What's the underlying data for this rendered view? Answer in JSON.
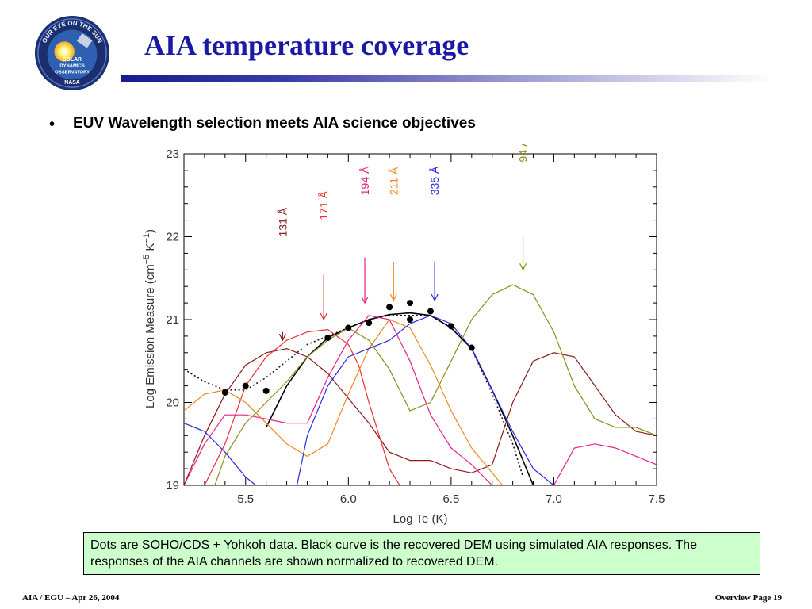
{
  "slide": {
    "title": "AIA temperature coverage",
    "bullet": "EUV Wavelength selection meets AIA science objectives",
    "caption": "Dots are SOHO/CDS + Yohkoh data.  Black curve is the recovered DEM using simulated AIA responses.  The responses of the AIA channels are shown normalized to recovered DEM.",
    "footer_left": "AIA / EGU – Apr 26, 2004",
    "footer_right": "Overview Page 19"
  },
  "logo": {
    "ring_text": "OUR EYE ON THE SUN",
    "line1": "SOLAR",
    "line2": "DYNAMICS",
    "line3": "OBSERVATORY",
    "agency": "NASA"
  },
  "chart_data": {
    "type": "line",
    "title": "",
    "xlabel": "Log Te (K)",
    "ylabel_main": "Log Emission Measure (cm",
    "ylabel_sup1": "−5",
    "ylabel_mid": " K",
    "ylabel_sup2": "−1",
    "ylabel_end": ")",
    "xlim": [
      5.2,
      7.5
    ],
    "ylim": [
      19,
      23
    ],
    "x_ticks": [
      {
        "value": 5.5,
        "label": "5.5"
      },
      {
        "value": 6.0,
        "label": "6.0"
      },
      {
        "value": 6.5,
        "label": "6.5"
      },
      {
        "value": 7.0,
        "label": "7.0"
      },
      {
        "value": 7.5,
        "label": "7.5"
      }
    ],
    "y_ticks": [
      {
        "value": 19,
        "label": "19"
      },
      {
        "value": 20,
        "label": "20"
      },
      {
        "value": 21,
        "label": "21"
      },
      {
        "value": 22,
        "label": "22"
      },
      {
        "value": 23,
        "label": "23"
      }
    ],
    "series": [
      {
        "color": "#1a1a1a",
        "style": "dotted",
        "points": [
          [
            5.2,
            20.4
          ],
          [
            5.3,
            20.25
          ],
          [
            5.4,
            20.15
          ],
          [
            5.5,
            20.15
          ],
          [
            5.6,
            20.3
          ],
          [
            5.7,
            20.5
          ],
          [
            5.8,
            20.7
          ],
          [
            5.9,
            20.8
          ],
          [
            6.0,
            20.9
          ],
          [
            6.1,
            21.0
          ],
          [
            6.2,
            21.05
          ],
          [
            6.3,
            21.05
          ],
          [
            6.4,
            21.05
          ],
          [
            6.5,
            20.9
          ],
          [
            6.6,
            20.65
          ],
          [
            6.7,
            20.1
          ],
          [
            6.8,
            19.5
          ],
          [
            6.85,
            19.1
          ]
        ]
      },
      {
        "color": "#000000",
        "style": "solid",
        "points": [
          [
            5.6,
            19.7
          ],
          [
            5.7,
            20.2
          ],
          [
            5.8,
            20.55
          ],
          [
            5.9,
            20.78
          ],
          [
            6.0,
            20.9
          ],
          [
            6.1,
            21.0
          ],
          [
            6.2,
            21.06
          ],
          [
            6.3,
            21.08
          ],
          [
            6.4,
            21.05
          ],
          [
            6.5,
            20.9
          ],
          [
            6.6,
            20.65
          ],
          [
            6.7,
            20.15
          ],
          [
            6.8,
            19.6
          ],
          [
            6.9,
            19.0
          ]
        ]
      },
      {
        "color": "#8b1a1a",
        "style": "solid",
        "points": [
          [
            5.2,
            19.0
          ],
          [
            5.3,
            19.6
          ],
          [
            5.4,
            20.1
          ],
          [
            5.5,
            20.45
          ],
          [
            5.6,
            20.6
          ],
          [
            5.7,
            20.65
          ],
          [
            5.8,
            20.55
          ],
          [
            5.9,
            20.35
          ],
          [
            6.0,
            20.05
          ],
          [
            6.1,
            19.75
          ],
          [
            6.2,
            19.4
          ],
          [
            6.3,
            19.3
          ],
          [
            6.4,
            19.3
          ],
          [
            6.5,
            19.2
          ],
          [
            6.6,
            19.15
          ],
          [
            6.7,
            19.25
          ],
          [
            6.8,
            20.0
          ],
          [
            6.9,
            20.5
          ],
          [
            7.0,
            20.6
          ],
          [
            7.1,
            20.55
          ],
          [
            7.2,
            20.2
          ],
          [
            7.3,
            19.85
          ],
          [
            7.4,
            19.65
          ],
          [
            7.5,
            19.6
          ]
        ]
      },
      {
        "color": "#e83030",
        "style": "solid",
        "points": [
          [
            5.3,
            19.0
          ],
          [
            5.4,
            19.5
          ],
          [
            5.5,
            20.2
          ],
          [
            5.6,
            20.55
          ],
          [
            5.7,
            20.75
          ],
          [
            5.8,
            20.85
          ],
          [
            5.9,
            20.88
          ],
          [
            6.0,
            20.7
          ],
          [
            6.05,
            20.45
          ],
          [
            6.1,
            20.0
          ],
          [
            6.2,
            19.2
          ],
          [
            6.25,
            19.0
          ]
        ]
      },
      {
        "color": "#e8208c",
        "style": "solid",
        "points": [
          [
            5.2,
            19.0
          ],
          [
            5.3,
            19.5
          ],
          [
            5.4,
            19.85
          ],
          [
            5.5,
            19.85
          ],
          [
            5.6,
            19.8
          ],
          [
            5.7,
            19.75
          ],
          [
            5.8,
            19.75
          ],
          [
            5.9,
            20.3
          ],
          [
            6.0,
            20.75
          ],
          [
            6.1,
            21.05
          ],
          [
            6.2,
            21.0
          ],
          [
            6.3,
            20.5
          ],
          [
            6.4,
            19.85
          ],
          [
            6.5,
            19.45
          ],
          [
            6.6,
            19.25
          ],
          [
            6.7,
            19.0
          ],
          [
            7.0,
            19.0
          ],
          [
            7.1,
            19.45
          ],
          [
            7.2,
            19.5
          ],
          [
            7.3,
            19.45
          ],
          [
            7.4,
            19.35
          ],
          [
            7.5,
            19.25
          ]
        ]
      },
      {
        "color": "#f08a20",
        "style": "solid",
        "points": [
          [
            5.2,
            19.9
          ],
          [
            5.3,
            20.1
          ],
          [
            5.4,
            20.15
          ],
          [
            5.5,
            20.0
          ],
          [
            5.6,
            19.75
          ],
          [
            5.7,
            19.5
          ],
          [
            5.8,
            19.35
          ],
          [
            5.9,
            19.5
          ],
          [
            6.0,
            20.1
          ],
          [
            6.1,
            20.65
          ],
          [
            6.2,
            21.0
          ],
          [
            6.3,
            20.9
          ],
          [
            6.4,
            20.45
          ],
          [
            6.5,
            19.9
          ],
          [
            6.6,
            19.45
          ],
          [
            6.7,
            19.15
          ],
          [
            6.75,
            19.0
          ]
        ]
      },
      {
        "color": "#2a2ae8",
        "style": "solid",
        "points": [
          [
            5.2,
            19.75
          ],
          [
            5.3,
            19.65
          ],
          [
            5.4,
            19.4
          ],
          [
            5.5,
            19.1
          ],
          [
            5.55,
            19.0
          ],
          [
            5.75,
            19.0
          ],
          [
            5.8,
            19.6
          ],
          [
            5.9,
            20.2
          ],
          [
            6.0,
            20.55
          ],
          [
            6.1,
            20.65
          ],
          [
            6.2,
            20.75
          ],
          [
            6.3,
            20.95
          ],
          [
            6.4,
            21.05
          ],
          [
            6.5,
            20.95
          ],
          [
            6.6,
            20.65
          ],
          [
            6.7,
            20.15
          ],
          [
            6.8,
            19.65
          ],
          [
            6.9,
            19.2
          ],
          [
            7.0,
            19.0
          ]
        ]
      },
      {
        "color": "#8c8c1a",
        "style": "solid",
        "points": [
          [
            5.35,
            19.0
          ],
          [
            5.4,
            19.35
          ],
          [
            5.5,
            19.75
          ],
          [
            5.6,
            20.0
          ],
          [
            5.7,
            20.25
          ],
          [
            5.8,
            20.55
          ],
          [
            5.9,
            20.75
          ],
          [
            6.0,
            20.9
          ],
          [
            6.1,
            20.75
          ],
          [
            6.2,
            20.4
          ],
          [
            6.3,
            19.9
          ],
          [
            6.4,
            20.0
          ],
          [
            6.5,
            20.5
          ],
          [
            6.6,
            21.0
          ],
          [
            6.7,
            21.3
          ],
          [
            6.8,
            21.42
          ],
          [
            6.9,
            21.3
          ],
          [
            7.0,
            20.85
          ],
          [
            7.1,
            20.2
          ],
          [
            7.2,
            19.8
          ],
          [
            7.3,
            19.7
          ],
          [
            7.4,
            19.7
          ],
          [
            7.5,
            19.6
          ]
        ]
      }
    ],
    "scatter_points": [
      [
        5.4,
        20.12
      ],
      [
        5.5,
        20.2
      ],
      [
        5.6,
        20.14
      ],
      [
        5.9,
        20.78
      ],
      [
        6.0,
        20.9
      ],
      [
        6.1,
        20.96
      ],
      [
        6.2,
        21.15
      ],
      [
        6.3,
        21.2
      ],
      [
        6.3,
        21.0
      ],
      [
        6.4,
        21.1
      ],
      [
        6.5,
        20.92
      ],
      [
        6.6,
        20.66
      ]
    ],
    "annotations": [
      {
        "label": "131 Å",
        "x": 5.68,
        "label_y": 22.0,
        "arrow_top": 20.85,
        "arrow_bottom": 20.75,
        "color": "#8b1a1a"
      },
      {
        "label": "171 Å",
        "x": 5.88,
        "label_y": 22.2,
        "arrow_top": 21.55,
        "arrow_bottom": 21.0,
        "color": "#e83030"
      },
      {
        "label": "194 Å",
        "x": 6.08,
        "label_y": 22.5,
        "arrow_top": 21.75,
        "arrow_bottom": 21.2,
        "color": "#e8208c"
      },
      {
        "label": "211 Å",
        "x": 6.22,
        "label_y": 22.5,
        "arrow_top": 21.7,
        "arrow_bottom": 21.23,
        "color": "#f08a20"
      },
      {
        "label": "335 Å",
        "x": 6.42,
        "label_y": 22.5,
        "arrow_top": 21.7,
        "arrow_bottom": 21.23,
        "color": "#2a2ae8"
      },
      {
        "label": "94 Å",
        "x": 6.85,
        "label_y": 22.9,
        "arrow_top": 22.0,
        "arrow_bottom": 21.6,
        "color": "#8c8c1a"
      }
    ]
  }
}
